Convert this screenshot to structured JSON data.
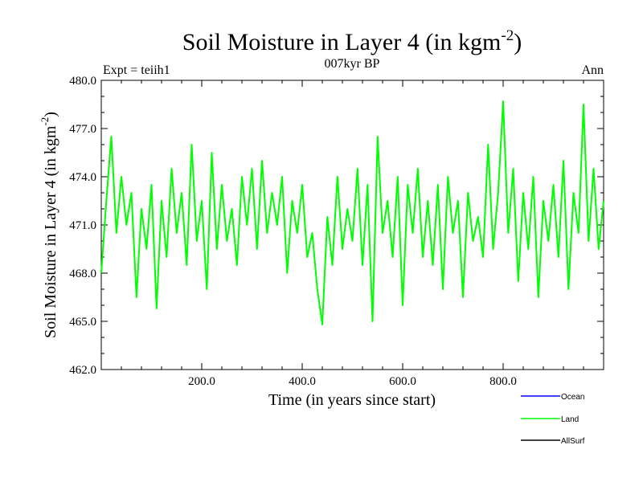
{
  "chart_data": {
    "type": "line",
    "title": "Soil Moisture in Layer 4 (in kgm",
    "title_sup": "-2",
    "title_close": ")",
    "subtitle": "007kyr BP",
    "left_label": "Expt = teiih1",
    "right_label": "Ann",
    "xlabel": "Time (in years since start)",
    "ylabel": "Soil Moisture in Layer 4 (in kgm",
    "ylabel_sup": "-2",
    "ylabel_close": ")",
    "xlim": [
      0,
      1000
    ],
    "ylim": [
      462,
      480
    ],
    "x_ticks": [
      200,
      400,
      600,
      800
    ],
    "x_tick_labels": [
      "200.0",
      "400.0",
      "600.0",
      "800.0"
    ],
    "y_ticks": [
      462,
      465,
      468,
      471,
      474,
      477,
      480
    ],
    "y_tick_labels": [
      "462.0",
      "465.0",
      "468.0",
      "471.0",
      "474.0",
      "477.0",
      "480.0"
    ],
    "colors": {
      "Ocean": "#0000ff",
      "Land": "#00ff00",
      "AllSurf": "#000000"
    },
    "legend": [
      "Ocean",
      "Land",
      "AllSurf"
    ],
    "legend_position": "bottom-right",
    "grid": false,
    "series": [
      {
        "name": "Land",
        "x": [
          0,
          10,
          20,
          30,
          40,
          50,
          60,
          70,
          80,
          90,
          100,
          110,
          120,
          130,
          140,
          150,
          160,
          170,
          180,
          190,
          200,
          210,
          220,
          230,
          240,
          250,
          260,
          270,
          280,
          290,
          300,
          310,
          320,
          330,
          340,
          350,
          360,
          370,
          380,
          390,
          400,
          410,
          420,
          430,
          440,
          450,
          460,
          470,
          480,
          490,
          500,
          510,
          520,
          530,
          540,
          550,
          560,
          570,
          580,
          590,
          600,
          610,
          620,
          630,
          640,
          650,
          660,
          670,
          680,
          690,
          700,
          710,
          720,
          730,
          740,
          750,
          760,
          770,
          780,
          790,
          800,
          810,
          820,
          830,
          840,
          850,
          860,
          870,
          880,
          890,
          900,
          910,
          920,
          930,
          940,
          950,
          960,
          970,
          980,
          990,
          1000
        ],
        "values": [
          468.0,
          472.5,
          476.5,
          470.5,
          474.0,
          471.0,
          473.0,
          466.5,
          472.0,
          469.5,
          473.5,
          465.8,
          472.5,
          469.0,
          474.5,
          470.5,
          473.0,
          468.5,
          476.0,
          470.0,
          472.5,
          467.0,
          475.5,
          469.5,
          473.5,
          470.0,
          472.0,
          468.5,
          474.0,
          471.0,
          474.5,
          469.5,
          475.0,
          470.5,
          473.0,
          471.0,
          474.0,
          468.0,
          472.5,
          470.5,
          473.5,
          469.0,
          470.5,
          467.0,
          464.8,
          471.5,
          468.5,
          474.0,
          469.5,
          472.0,
          470.0,
          474.5,
          468.5,
          473.5,
          465.0,
          476.5,
          470.5,
          472.5,
          469.0,
          474.0,
          466.0,
          473.5,
          470.5,
          474.5,
          469.0,
          472.5,
          468.5,
          473.5,
          467.0,
          474.0,
          470.5,
          472.5,
          466.5,
          473.0,
          470.0,
          471.5,
          469.0,
          476.0,
          469.5,
          473.0,
          478.7,
          470.5,
          474.5,
          467.5,
          473.0,
          469.5,
          474.0,
          466.5,
          472.5,
          470.0,
          473.5,
          469.0,
          475.0,
          467.0,
          473.0,
          470.5,
          478.5,
          470.0,
          474.5,
          469.5,
          472.5
        ]
      }
    ]
  }
}
